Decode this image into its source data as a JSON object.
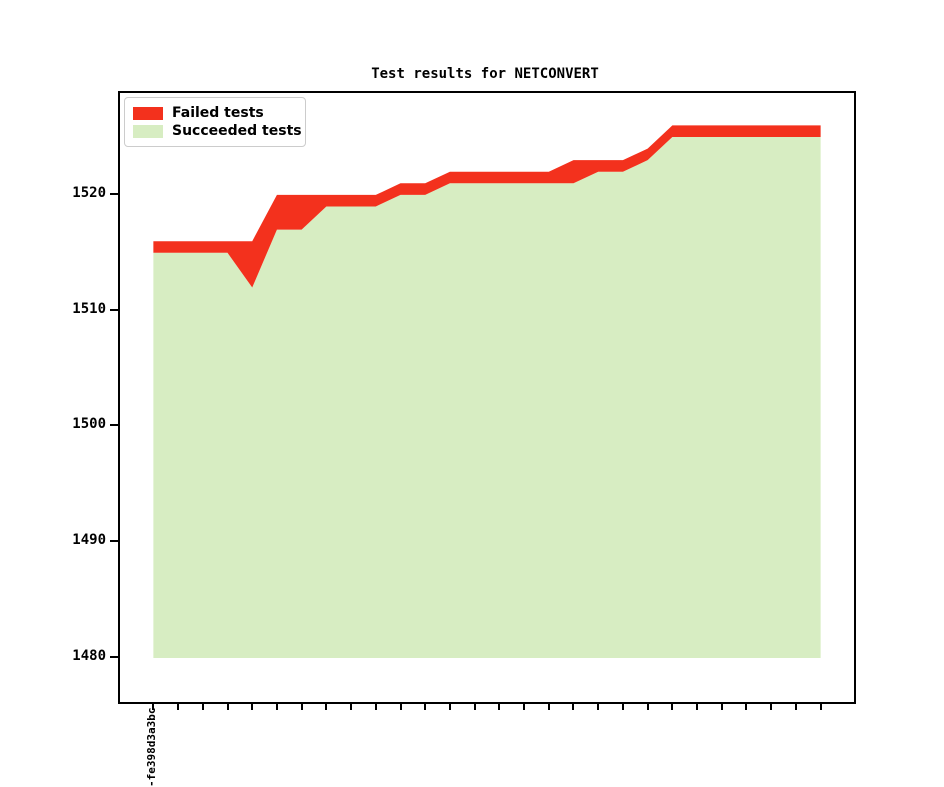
{
  "chart_data": {
    "type": "area",
    "stacked": true,
    "title": "Test results for NETCONVERT",
    "xlabel": "",
    "ylabel": "",
    "n_points": 28,
    "baseline": 1480,
    "ylim": [
      1476.2,
      1528.8
    ],
    "yticks": [
      1480,
      1490,
      1500,
      1510,
      1520
    ],
    "x_margin_units": 1.35,
    "grid": false,
    "legend_position": "upper-left",
    "x_tick_labels": [
      "-fe398d3a3bc",
      "",
      "",
      "",
      "",
      "",
      "",
      "",
      "",
      "",
      "",
      "",
      "",
      "",
      "",
      "",
      "",
      "",
      "",
      "",
      "",
      "",
      "",
      "",
      "",
      "",
      "",
      ""
    ],
    "series": [
      {
        "name": "Failed tests",
        "color": "#f3311d",
        "values": [
          1,
          1,
          1,
          1,
          4,
          3,
          3,
          1,
          1,
          1,
          1,
          1,
          1,
          1,
          1,
          1,
          1,
          2,
          1,
          1,
          1,
          1,
          1,
          1,
          1,
          1,
          1,
          1
        ]
      },
      {
        "name": "Succeeded tests",
        "color": "#d7edc2",
        "values": [
          1515,
          1515,
          1515,
          1515,
          1512,
          1517,
          1517,
          1519,
          1519,
          1519,
          1520,
          1520,
          1521,
          1521,
          1521,
          1521,
          1521,
          1521,
          1522,
          1522,
          1523,
          1525,
          1525,
          1525,
          1525,
          1525,
          1525,
          1525
        ]
      }
    ],
    "totals": [
      1516,
      1516,
      1516,
      1516,
      1516,
      1520,
      1520,
      1520,
      1520,
      1520,
      1521,
      1521,
      1522,
      1522,
      1522,
      1522,
      1522,
      1523,
      1523,
      1523,
      1524,
      1526,
      1526,
      1526,
      1526,
      1526,
      1526,
      1526
    ]
  },
  "colors": {
    "failed": "#f3311d",
    "succeeded": "#d7edc2",
    "axis": "#000000",
    "background": "#ffffff",
    "legend_border": "#cccccc"
  }
}
